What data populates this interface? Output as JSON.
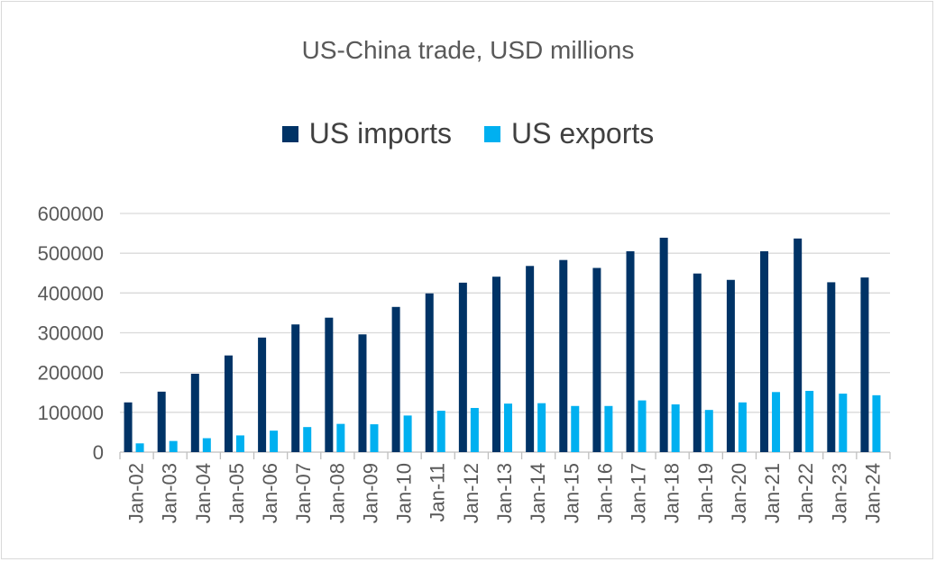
{
  "chart_data": {
    "type": "bar",
    "title": "US-China trade, USD millions",
    "xlabel": "",
    "ylabel": "",
    "ylim": [
      0,
      600000
    ],
    "yticks": [
      0,
      100000,
      200000,
      300000,
      400000,
      500000,
      600000
    ],
    "grid": true,
    "legend_position": "top",
    "categories": [
      "Jan-02",
      "Jan-03",
      "Jan-04",
      "Jan-05",
      "Jan-06",
      "Jan-07",
      "Jan-08",
      "Jan-09",
      "Jan-10",
      "Jan-11",
      "Jan-12",
      "Jan-13",
      "Jan-14",
      "Jan-15",
      "Jan-16",
      "Jan-17",
      "Jan-18",
      "Jan-19",
      "Jan-20",
      "Jan-21",
      "Jan-22",
      "Jan-23",
      "Jan-24"
    ],
    "series": [
      {
        "name": "US imports",
        "color": "#003366",
        "values": [
          125000,
          152000,
          197000,
          243000,
          288000,
          321000,
          338000,
          296000,
          365000,
          399000,
          426000,
          441000,
          468000,
          483000,
          463000,
          505000,
          539000,
          449000,
          433000,
          505000,
          537000,
          427000,
          439000
        ]
      },
      {
        "name": "US exports",
        "color": "#00b0f0",
        "values": [
          22000,
          28000,
          35000,
          42000,
          54000,
          63000,
          71000,
          70000,
          92000,
          104000,
          111000,
          122000,
          123000,
          116000,
          116000,
          130000,
          120000,
          106000,
          125000,
          151000,
          154000,
          147000,
          143000
        ]
      }
    ]
  }
}
